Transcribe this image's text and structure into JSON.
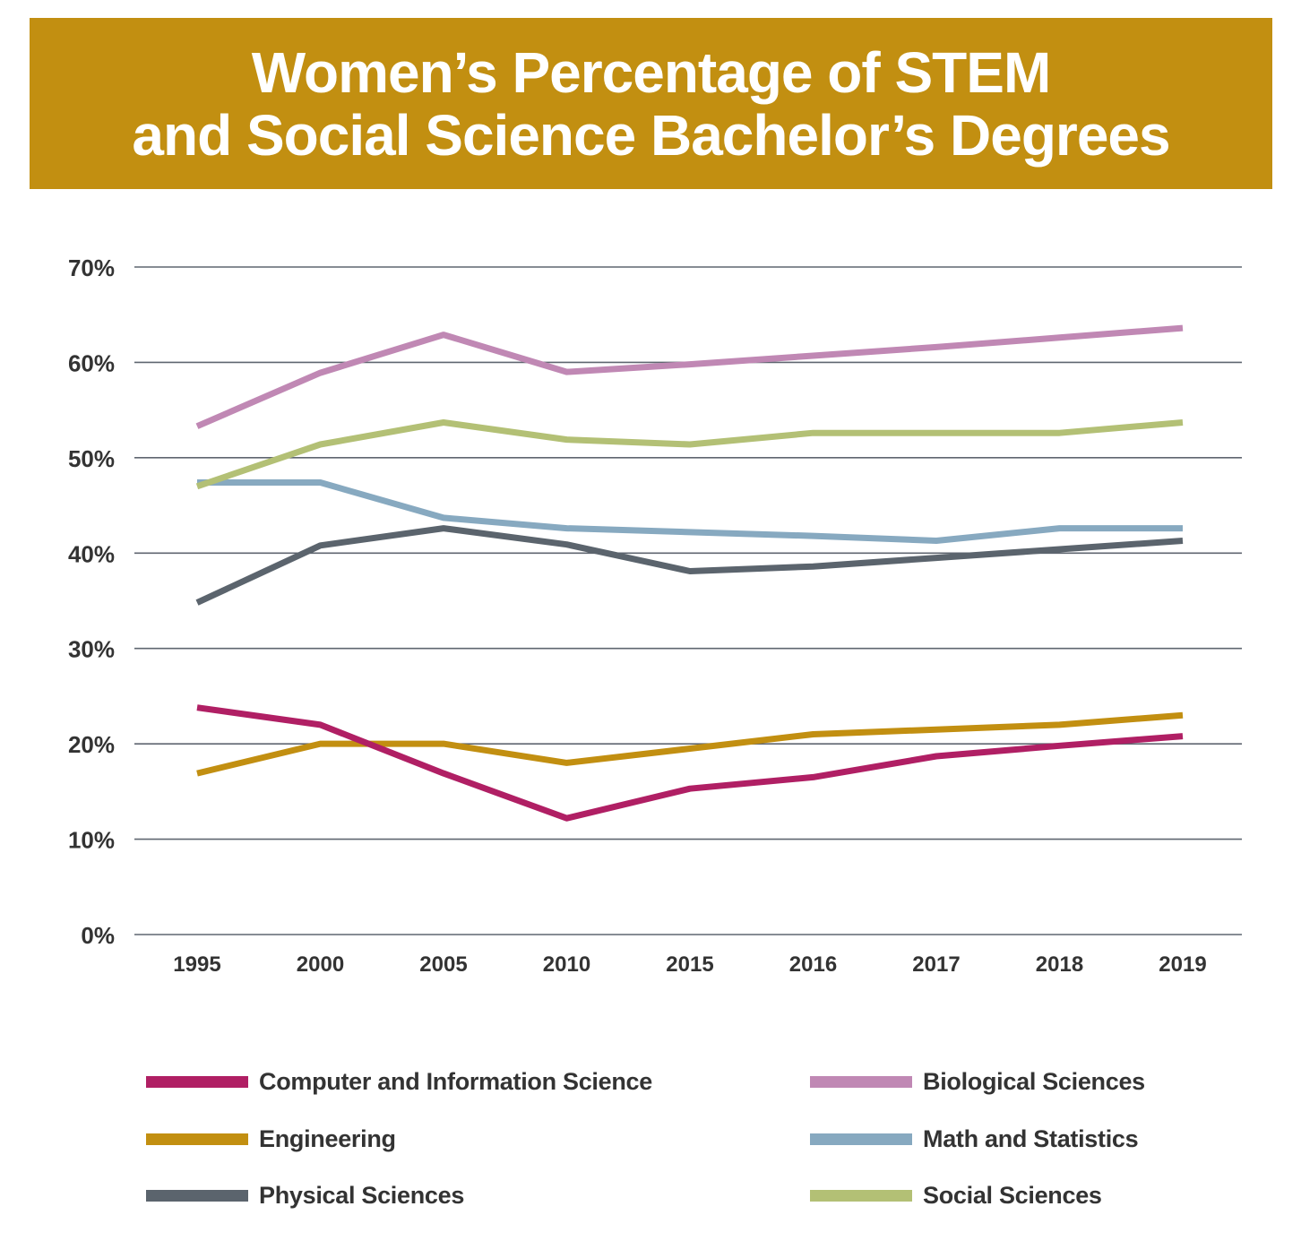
{
  "title": {
    "line1": "Women’s Percentage of STEM",
    "line2": "and Social Science Bachelor’s Degrees"
  },
  "chart_data": {
    "type": "line",
    "title": "Women’s Percentage of STEM and Social Science Bachelor’s Degrees",
    "xlabel": "",
    "ylabel": "",
    "ylim": [
      0,
      70
    ],
    "y_ticks": [
      "0%",
      "10%",
      "20%",
      "30%",
      "40%",
      "50%",
      "60%",
      "70%"
    ],
    "categories": [
      "1995",
      "2000",
      "2005",
      "2010",
      "2015",
      "2016",
      "2017",
      "2018",
      "2019"
    ],
    "grid": "horizontal",
    "legend_position": "bottom",
    "series": [
      {
        "name": "Computer and Information Science",
        "color": "#b01f64",
        "values": [
          23.8,
          22.0,
          16.9,
          12.2,
          15.3,
          16.5,
          18.7,
          19.8,
          20.8
        ]
      },
      {
        "name": "Biological Sciences",
        "color": "#c088b4",
        "values": [
          53.3,
          58.9,
          62.9,
          59.0,
          59.8,
          60.7,
          61.6,
          62.6,
          63.6
        ]
      },
      {
        "name": "Engineering",
        "color": "#c28f11",
        "values": [
          16.9,
          20.0,
          20.0,
          18.0,
          19.5,
          21.0,
          21.5,
          22.0,
          23.0
        ]
      },
      {
        "name": "Math and Statistics",
        "color": "#87a9c0",
        "values": [
          47.4,
          47.4,
          43.7,
          42.6,
          42.2,
          41.8,
          41.3,
          42.6,
          42.6
        ]
      },
      {
        "name": "Physical Sciences",
        "color": "#5b646d",
        "values": [
          34.8,
          40.8,
          42.6,
          40.9,
          38.1,
          38.6,
          39.5,
          40.4,
          41.3
        ]
      },
      {
        "name": "Social Sciences",
        "color": "#b3c075",
        "values": [
          47.0,
          51.4,
          53.7,
          51.9,
          51.4,
          52.6,
          52.6,
          52.6,
          53.7
        ]
      }
    ]
  },
  "legend": [
    {
      "label": "Computer and Information Science",
      "color": "#b01f64"
    },
    {
      "label": "Biological Sciences",
      "color": "#c088b4"
    },
    {
      "label": "Engineering",
      "color": "#c28f11"
    },
    {
      "label": "Math and Statistics",
      "color": "#87a9c0"
    },
    {
      "label": "Physical Sciences",
      "color": "#5b646d"
    },
    {
      "label": "Social Sciences",
      "color": "#b3c075"
    }
  ]
}
